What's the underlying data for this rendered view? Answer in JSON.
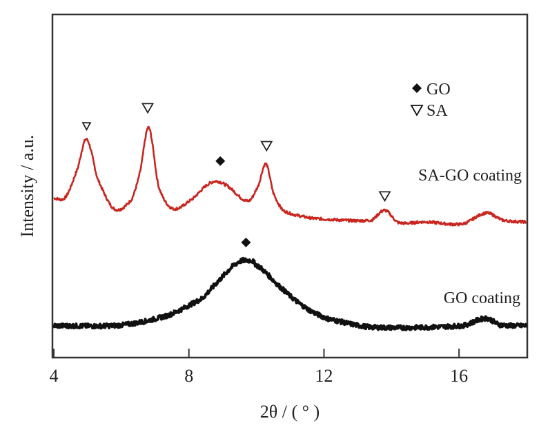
{
  "chart_data": {
    "type": "line",
    "title": "",
    "xlabel": "2θ / ( ° )",
    "ylabel": "Intensity / a.u.",
    "xlim": [
      4,
      18
    ],
    "ylim": [
      0,
      100
    ],
    "xticks": [
      "4",
      "8",
      "12",
      "16"
    ],
    "yticks": [],
    "grid": false,
    "series": [
      {
        "name": "SA-GO coating",
        "color": "#c8261f",
        "x": [
          4.0,
          4.35,
          4.7,
          4.97,
          5.3,
          5.79,
          6.3,
          6.55,
          6.81,
          7.1,
          7.49,
          8.0,
          8.66,
          9.07,
          9.75,
          10.05,
          10.28,
          10.5,
          10.78,
          11.47,
          12.0,
          13.4,
          13.8,
          14.2,
          15.0,
          16.1,
          16.8,
          17.3,
          18.0
        ],
        "y": [
          46.4,
          46.8,
          55.0,
          63.7,
          52.0,
          43.3,
          46.0,
          54.0,
          67.1,
          50.0,
          43.5,
          45.5,
          51.0,
          50.4,
          45.6,
          50.0,
          56.5,
          48.0,
          42.9,
          40.9,
          40.3,
          40.0,
          42.9,
          39.3,
          39.5,
          38.9,
          42.1,
          40.0,
          39.5
        ]
      },
      {
        "name": "GO coating",
        "color": "#111111",
        "x": [
          4.0,
          6.0,
          7.37,
          8.4,
          8.87,
          9.42,
          9.75,
          9.95,
          10.78,
          11.47,
          12.1,
          13.4,
          16.1,
          16.8,
          17.2,
          18.0
        ],
        "y": [
          9.1,
          9.3,
          12.1,
          17.1,
          22.2,
          27.4,
          28.2,
          27.2,
          19.8,
          14.3,
          11.2,
          8.7,
          9.1,
          11.3,
          9.4,
          9.1
        ]
      }
    ],
    "markers": {
      "GO": [
        {
          "x": 8.93,
          "y": 57.3
        },
        {
          "x": 9.69,
          "y": 33.5
        }
      ],
      "SA": [
        {
          "x": 4.97,
          "y": 67.5
        },
        {
          "x": 6.78,
          "y": 72.8
        },
        {
          "x": 10.3,
          "y": 61.7
        },
        {
          "x": 13.8,
          "y": 47.0
        }
      ]
    },
    "legend": {
      "position": "top-right",
      "entries": [
        {
          "symbol": "filled-diamond",
          "label": "GO"
        },
        {
          "symbol": "open-down-triangle",
          "label": "SA"
        }
      ]
    },
    "annotations": [
      "SA-GO coating",
      "GO coating"
    ]
  }
}
